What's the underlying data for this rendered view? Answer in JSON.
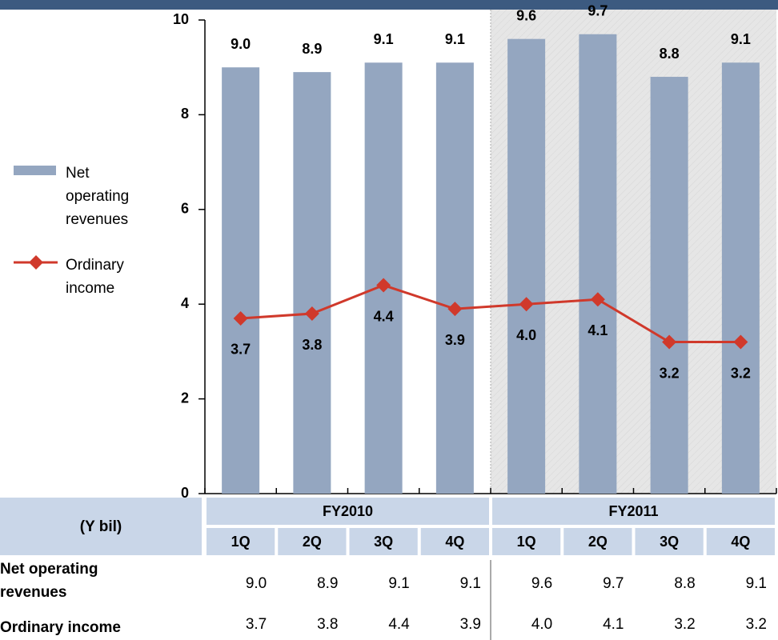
{
  "chart_data": {
    "type": "bar",
    "ylim": [
      0,
      10
    ],
    "yticks": [
      0,
      2,
      4,
      6,
      8,
      10
    ],
    "table_unit": "(Y bil)",
    "groups": [
      {
        "name": "FY2010",
        "categories": [
          "1Q",
          "2Q",
          "3Q",
          "4Q"
        ]
      },
      {
        "name": "FY2011",
        "categories": [
          "1Q",
          "2Q",
          "3Q",
          "4Q"
        ]
      }
    ],
    "highlight_group": 1,
    "series": [
      {
        "name": "Net operating revenues",
        "type": "bar",
        "color": "#94a6c0",
        "values": [
          9.0,
          8.9,
          9.1,
          9.1,
          9.6,
          9.7,
          8.8,
          9.1
        ],
        "value_labels": [
          "9.0",
          "8.9",
          "9.1",
          "9.1",
          "9.6",
          "9.7",
          "8.8",
          "9.1"
        ]
      },
      {
        "name": "Ordinary income",
        "type": "line",
        "color": "#d0392b",
        "values": [
          3.7,
          3.8,
          4.4,
          3.9,
          4.0,
          4.1,
          3.2,
          3.2
        ],
        "value_labels": [
          "3.7",
          "3.8",
          "4.4",
          "3.9",
          "4.0",
          "4.1",
          "3.2",
          "3.2"
        ]
      }
    ]
  }
}
